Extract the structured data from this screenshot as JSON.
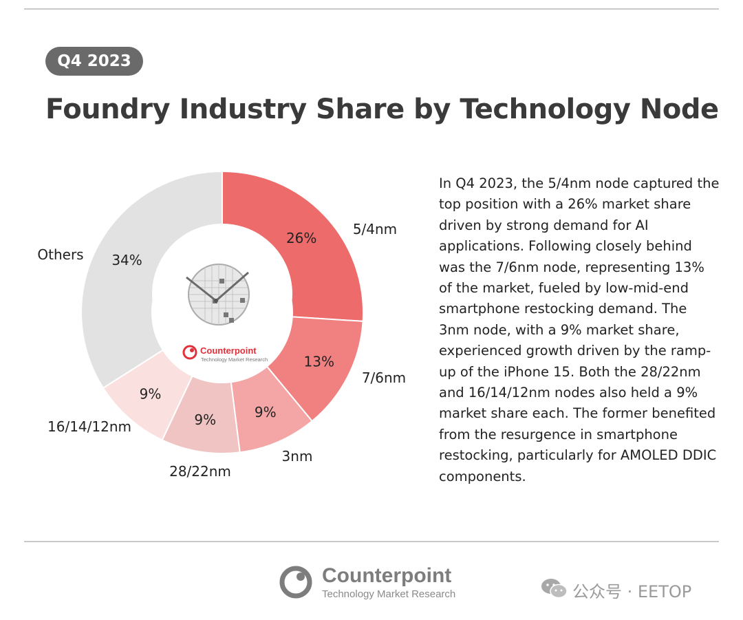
{
  "header": {
    "badge": "Q4 2023",
    "title": "Foundry Industry Share by Technology Node"
  },
  "chart_data": {
    "type": "pie",
    "variant": "donut",
    "categories": [
      "5/4nm",
      "7/6nm",
      "3nm",
      "28/22nm",
      "16/14/12nm",
      "Others"
    ],
    "values": [
      26,
      13,
      9,
      9,
      9,
      34
    ],
    "value_labels": [
      "26%",
      "13%",
      "9%",
      "9%",
      "9%",
      "34%"
    ],
    "colors": [
      "#ee6b6b",
      "#f18080",
      "#f4a6a6",
      "#f1c4c4",
      "#fbe0e0",
      "#e2e2e2"
    ],
    "start_angle_deg": 0,
    "direction": "clockwise",
    "center_logo": {
      "name": "Counterpoint",
      "tagline": "Technology Market Research"
    }
  },
  "description": "In Q4 2023, the 5/4nm node captured the top position with a 26% market share driven by strong demand for AI applications. Following closely behind was the 7/6nm node, representing 13% of the market, fueled by low-mid-end smartphone restocking demand. The 3nm node, with a 9% market share, experienced growth driven by the ramp-up of the iPhone 15. Both the 28/22nm and 16/14/12nm nodes also held a 9% market share each. The former benefited from the resurgence in smartphone restocking, particularly for AMOLED DDIC components.",
  "footer": {
    "brand": "Counterpoint",
    "tagline": "Technology Market Research",
    "watermark": "公众号 · EETOP"
  },
  "colors": {
    "brand_red": "#e0303a",
    "text_dark": "#3a3a3a",
    "badge_bg": "#6a6a6a",
    "footer_gray": "#8a8a8a"
  }
}
